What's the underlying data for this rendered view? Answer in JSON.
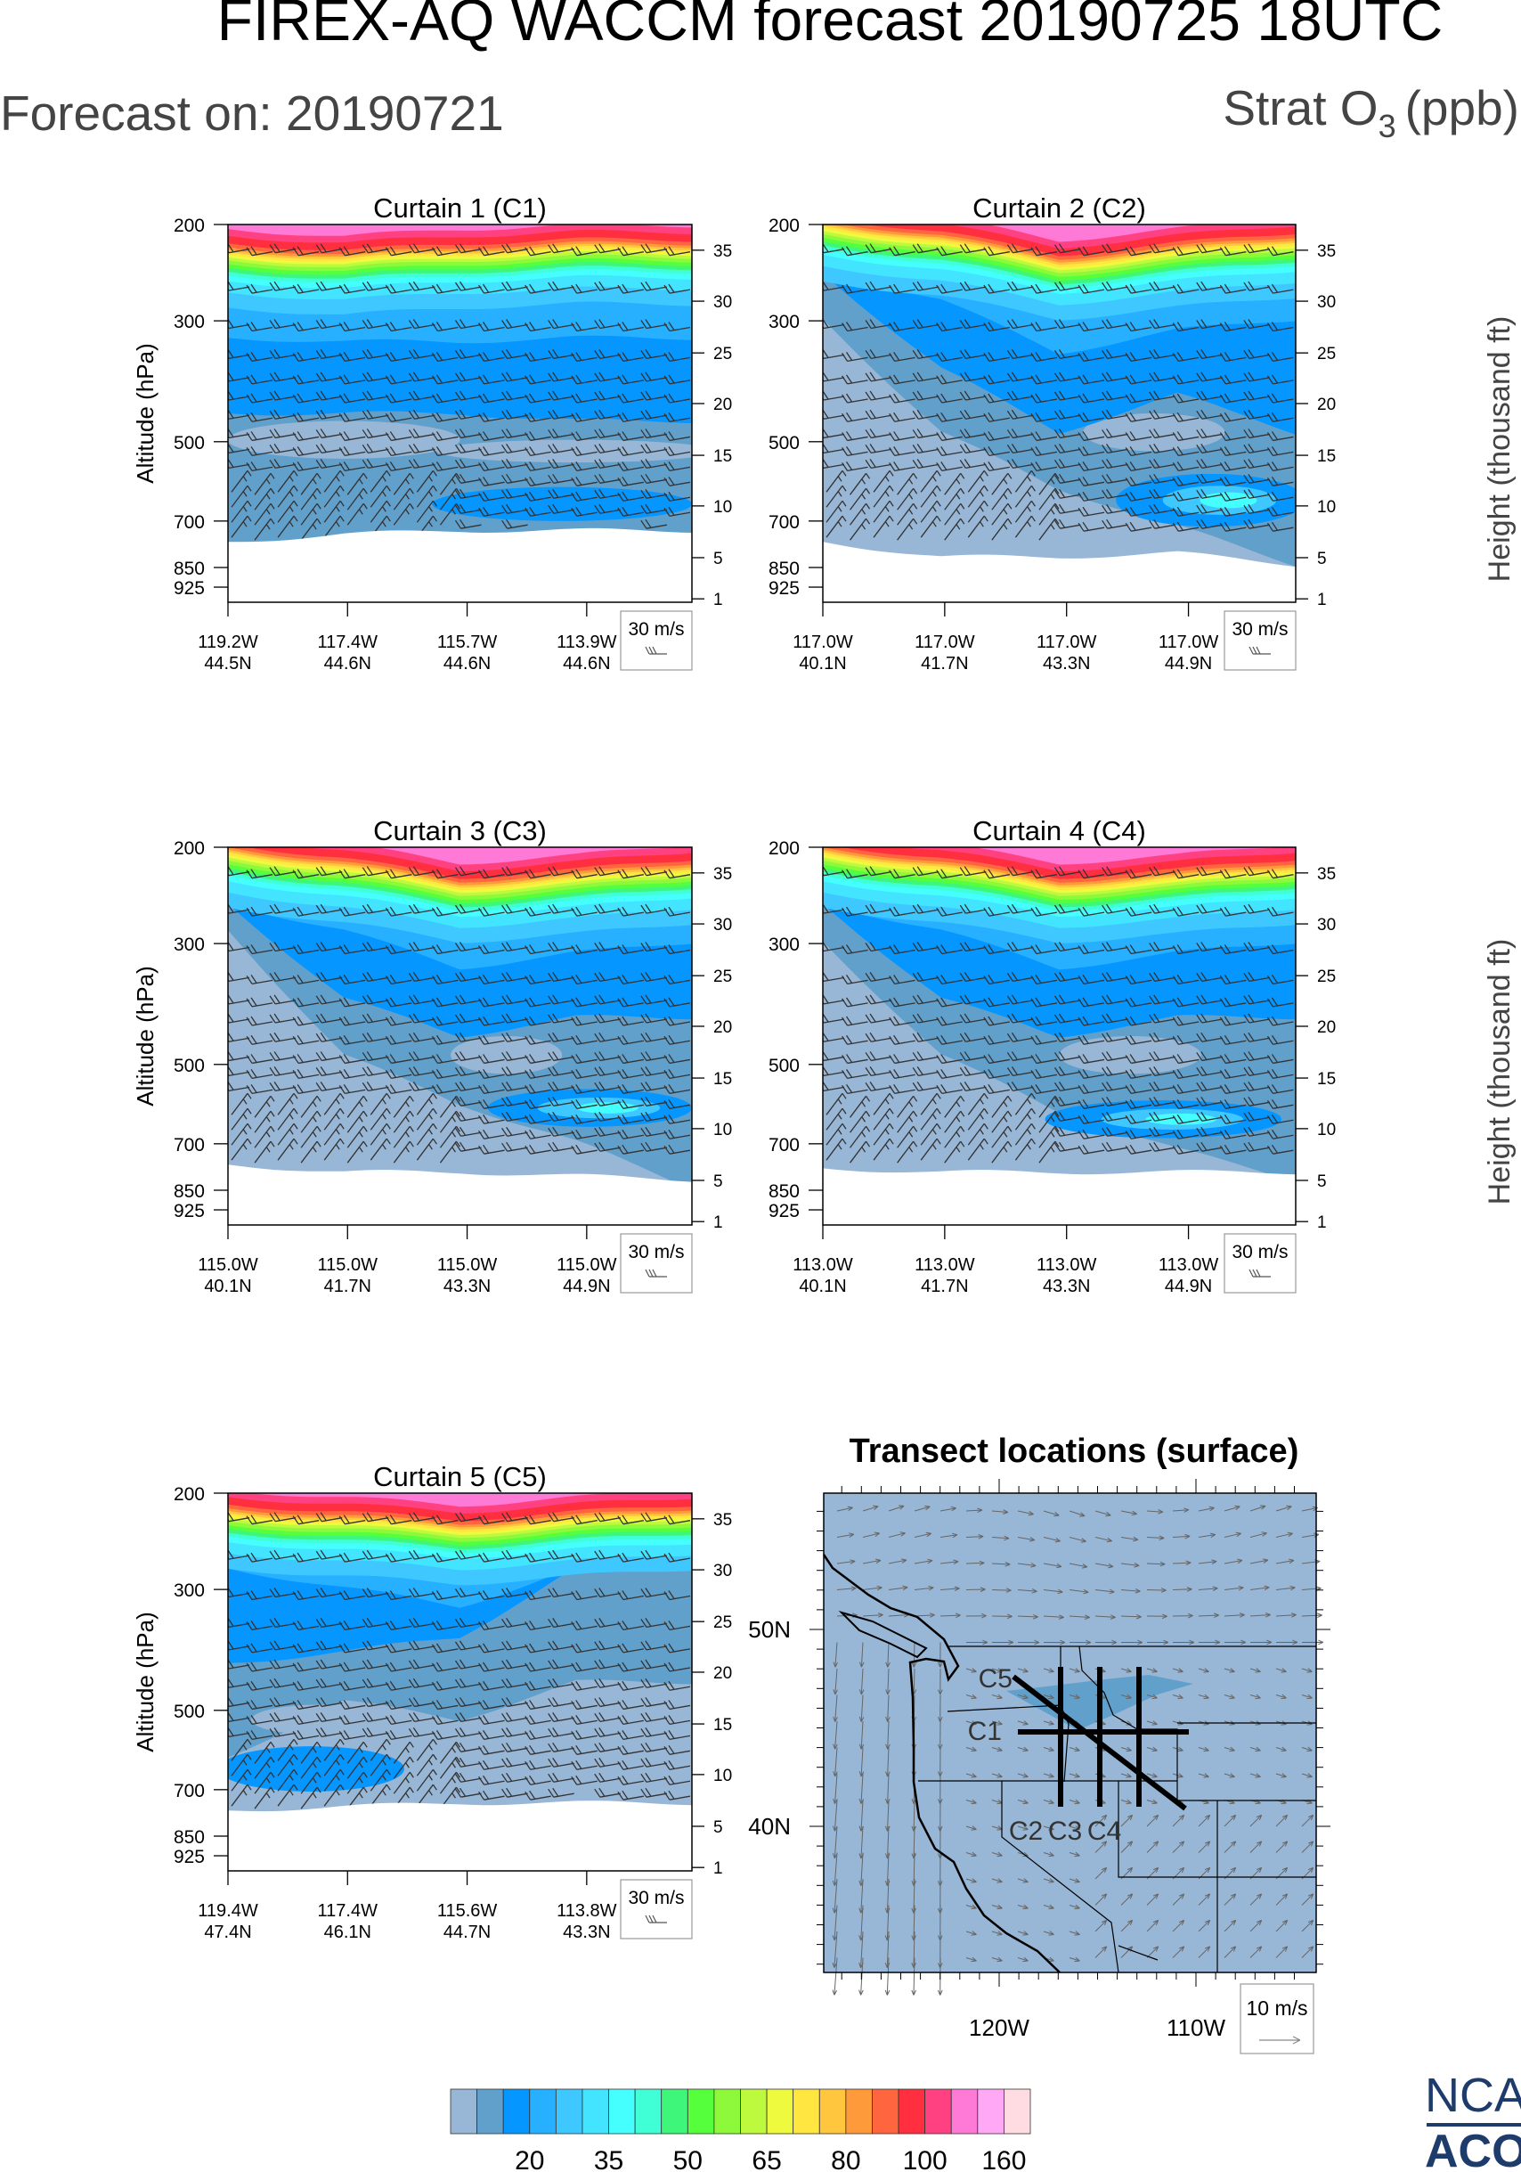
{
  "header": {
    "title": "FIREX-AQ WACCM forecast 20190725 18UTC",
    "forecast_on": "Forecast on: 20190721",
    "variable": "Strat O",
    "variable_sub": "3",
    "variable_unit": "(ppb)"
  },
  "curtain_axes": {
    "ylabel_left": "Altitude (hPa)",
    "ylabel_right": "Height (thousand ft)",
    "left_ticks": [
      "200",
      "300",
      "500",
      "700",
      "850",
      "925"
    ],
    "right_ticks": [
      "35",
      "30",
      "25",
      "20",
      "15",
      "10",
      "5",
      "1"
    ],
    "barb_legend": "30 m/s"
  },
  "chart_data": [
    {
      "type": "heatmap",
      "title": "Curtain 1 (C1)",
      "x_labels": [
        [
          "119.2W",
          "44.5N"
        ],
        [
          "117.4W",
          "44.6N"
        ],
        [
          "115.7W",
          "44.6N"
        ],
        [
          "113.9W",
          "44.6N"
        ]
      ],
      "ylabel": "Altitude (hPa)",
      "ylim_hPa": [
        200,
        1000
      ],
      "y2label": "Height (thousand ft)"
    },
    {
      "type": "heatmap",
      "title": "Curtain 2 (C2)",
      "x_labels": [
        [
          "117.0W",
          "40.1N"
        ],
        [
          "117.0W",
          "41.7N"
        ],
        [
          "117.0W",
          "43.3N"
        ],
        [
          "117.0W",
          "44.9N"
        ]
      ],
      "ylim_hPa": [
        200,
        1000
      ],
      "y2label": "Height (thousand ft)"
    },
    {
      "type": "heatmap",
      "title": "Curtain 3 (C3)",
      "x_labels": [
        [
          "115.0W",
          "40.1N"
        ],
        [
          "115.0W",
          "41.7N"
        ],
        [
          "115.0W",
          "43.3N"
        ],
        [
          "115.0W",
          "44.9N"
        ]
      ],
      "ylabel": "Altitude (hPa)",
      "ylim_hPa": [
        200,
        1000
      ]
    },
    {
      "type": "heatmap",
      "title": "Curtain 4 (C4)",
      "x_labels": [
        [
          "113.0W",
          "40.1N"
        ],
        [
          "113.0W",
          "41.7N"
        ],
        [
          "113.0W",
          "43.3N"
        ],
        [
          "113.0W",
          "44.9N"
        ]
      ],
      "ylim_hPa": [
        200,
        1000
      ],
      "y2label": "Height (thousand ft)"
    },
    {
      "type": "heatmap",
      "title": "Curtain 5 (C5)",
      "x_labels": [
        [
          "119.4W",
          "47.4N"
        ],
        [
          "117.4W",
          "46.1N"
        ],
        [
          "115.6W",
          "44.7N"
        ],
        [
          "113.8W",
          "43.3N"
        ]
      ],
      "ylabel": "Altitude (hPa)",
      "ylim_hPa": [
        200,
        1000
      ]
    }
  ],
  "map": {
    "title": "Transect locations (surface)",
    "lat_labels": [
      "50N",
      "40N"
    ],
    "lon_labels": [
      "120W",
      "110W"
    ],
    "transects": [
      "C1",
      "C2",
      "C3",
      "C4",
      "C5"
    ],
    "vector_legend": "10 m/s"
  },
  "colorbar": {
    "colors": [
      "#98b7d6",
      "#62a0cc",
      "#0596ff",
      "#26b0ff",
      "#3fc8ff",
      "#42e4ff",
      "#45ffff",
      "#40ffd6",
      "#3df67a",
      "#55ff3c",
      "#8ef93a",
      "#bdfa3e",
      "#eefa3e",
      "#ffe641",
      "#ffc63e",
      "#ff9a3b",
      "#ff653f",
      "#ff2f3f",
      "#ff4182",
      "#ff79d6",
      "#ffa9f6",
      "#ffdce2"
    ],
    "labels": [
      "20",
      "35",
      "50",
      "65",
      "80",
      "100",
      "160"
    ]
  },
  "logo": {
    "line1": "NCAR",
    "line2": "ACOM",
    "color": "#1d3b6b"
  }
}
